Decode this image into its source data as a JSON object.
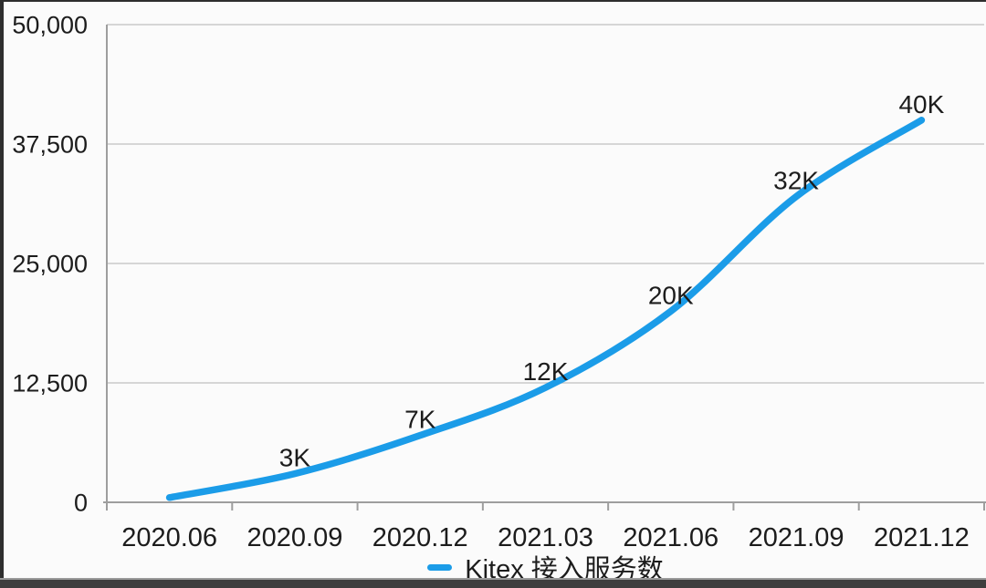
{
  "colors": {
    "line": "#1b9ce8",
    "grid": "#c9c9c9",
    "axis": "#9e9e9e",
    "text": "#1c1c1c",
    "frame_dark": "#2e2e2e",
    "background": "#fbfbfb"
  },
  "chart_data": {
    "type": "line",
    "title": "",
    "xlabel": "",
    "ylabel": "",
    "categories": [
      "2020.06",
      "2020.09",
      "2020.12",
      "2021.03",
      "2021.06",
      "2021.09",
      "2021.12"
    ],
    "series": [
      {
        "name": "Kitex 接入服务数",
        "values": [
          500,
          3000,
          7000,
          12000,
          20000,
          32000,
          40000
        ]
      }
    ],
    "point_labels": [
      "",
      "3K",
      "7K",
      "12K",
      "20K",
      "32K",
      "40K"
    ],
    "ylim": [
      0,
      50000
    ],
    "yticks": [
      0,
      12500,
      25000,
      37500,
      50000
    ],
    "ytick_labels": [
      "0",
      "12,500",
      "25,000",
      "37,500",
      "50,000"
    ],
    "grid": "horizontal",
    "line_color": "#1b9ce8",
    "legend": {
      "label": "Kitex 接入服务数",
      "position": "bottom-center",
      "marker": "line-dash"
    }
  }
}
